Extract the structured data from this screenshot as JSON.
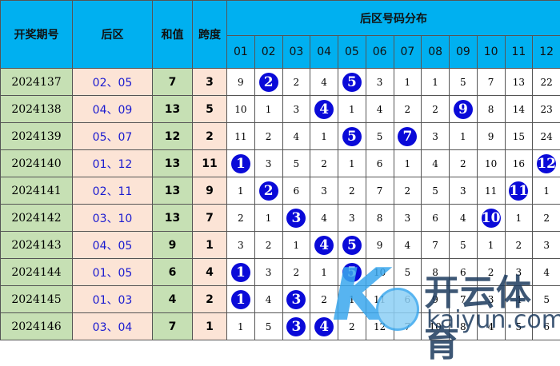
{
  "headers": {
    "period": "开奖期号",
    "back": "后区",
    "sum": "和值",
    "span": "跨度",
    "dist": "后区号码分布"
  },
  "numbers": [
    "01",
    "02",
    "03",
    "04",
    "05",
    "06",
    "07",
    "08",
    "09",
    "10",
    "11",
    "12"
  ],
  "rows": [
    {
      "period": "2024137",
      "back": "02、05",
      "sum": "7",
      "span": "3",
      "cells": [
        "9",
        "2",
        "2",
        "4",
        "5",
        "3",
        "1",
        "1",
        "5",
        "7",
        "13",
        "22"
      ],
      "hits": [
        1,
        4
      ]
    },
    {
      "period": "2024138",
      "back": "04、09",
      "sum": "13",
      "span": "5",
      "cells": [
        "10",
        "1",
        "3",
        "4",
        "1",
        "4",
        "2",
        "2",
        "9",
        "8",
        "14",
        "23"
      ],
      "hits": [
        3,
        8
      ]
    },
    {
      "period": "2024139",
      "back": "05、07",
      "sum": "12",
      "span": "2",
      "cells": [
        "11",
        "2",
        "4",
        "1",
        "5",
        "5",
        "7",
        "3",
        "1",
        "9",
        "15",
        "24"
      ],
      "hits": [
        4,
        6
      ]
    },
    {
      "period": "2024140",
      "back": "01、12",
      "sum": "13",
      "span": "11",
      "cells": [
        "1",
        "3",
        "5",
        "2",
        "1",
        "6",
        "1",
        "4",
        "2",
        "10",
        "16",
        "12"
      ],
      "hits": [
        0,
        11
      ]
    },
    {
      "period": "2024141",
      "back": "02、11",
      "sum": "13",
      "span": "9",
      "cells": [
        "1",
        "2",
        "6",
        "3",
        "2",
        "7",
        "2",
        "5",
        "3",
        "11",
        "11",
        "1"
      ],
      "hits": [
        1,
        10
      ]
    },
    {
      "period": "2024142",
      "back": "03、10",
      "sum": "13",
      "span": "7",
      "cells": [
        "2",
        "1",
        "3",
        "4",
        "3",
        "8",
        "3",
        "6",
        "4",
        "10",
        "1",
        "2"
      ],
      "hits": [
        2,
        9
      ]
    },
    {
      "period": "2024143",
      "back": "04、05",
      "sum": "9",
      "span": "1",
      "cells": [
        "3",
        "2",
        "1",
        "4",
        "5",
        "9",
        "4",
        "7",
        "5",
        "1",
        "2",
        "3"
      ],
      "hits": [
        3,
        4
      ]
    },
    {
      "period": "2024144",
      "back": "01、05",
      "sum": "6",
      "span": "4",
      "cells": [
        "1",
        "3",
        "2",
        "1",
        "5",
        "10",
        "5",
        "8",
        "6",
        "2",
        "3",
        "4"
      ],
      "hits": [
        0,
        4
      ]
    },
    {
      "period": "2024145",
      "back": "01、03",
      "sum": "4",
      "span": "2",
      "cells": [
        "1",
        "4",
        "3",
        "2",
        "1",
        "11",
        "6",
        "9",
        "7",
        "3",
        "4",
        "5"
      ],
      "hits": [
        0,
        2
      ]
    },
    {
      "period": "2024146",
      "back": "03、04",
      "sum": "7",
      "span": "1",
      "cells": [
        "1",
        "5",
        "3",
        "4",
        "2",
        "12",
        "7",
        "10",
        "8",
        "4",
        "5",
        "6"
      ],
      "hits": [
        2,
        3
      ]
    }
  ],
  "watermark": {
    "cn": "开云体育",
    "en": "kaiyun.com"
  },
  "colors": {
    "header": "#00b0f0",
    "ball": "#0a0ad8",
    "green": "#c6e0b4",
    "peach": "#fce4d6"
  }
}
